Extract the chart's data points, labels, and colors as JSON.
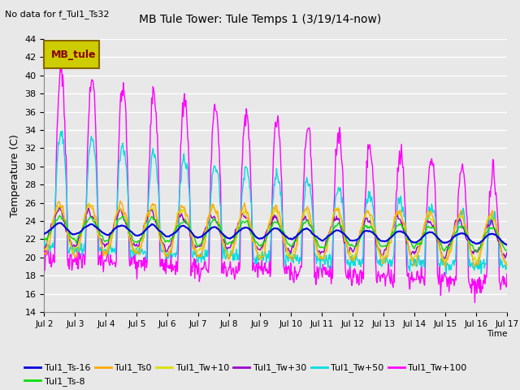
{
  "title": "MB Tule Tower: Tule Temps 1 (3/19/14-now)",
  "top_left_text": "No data for f_Tul1_Ts32",
  "xlabel": "Time",
  "ylabel": "Temperature (C)",
  "ylim": [
    14,
    44
  ],
  "yticks": [
    14,
    16,
    18,
    20,
    22,
    24,
    26,
    28,
    30,
    32,
    34,
    36,
    38,
    40,
    42,
    44
  ],
  "xtick_labels": [
    "Jul 2",
    "Jul 3",
    "Jul 4",
    "Jul 5",
    "Jul 6",
    "Jul 7",
    "Jul 8",
    "Jul 9",
    "Jul 10",
    "Jul 11",
    "Jul 12",
    "Jul 13",
    "Jul 14",
    "Jul 15",
    "Jul 16",
    "Jul 17"
  ],
  "legend_label": "MB_tule",
  "series_colors": {
    "Tul1_Ts-16": "#0000dd",
    "Tul1_Ts-8": "#00dd00",
    "Tul1_Ts0": "#ffaa00",
    "Tul1_Tw+10": "#dddd00",
    "Tul1_Tw+30": "#9900cc",
    "Tul1_Tw+50": "#00dddd",
    "Tul1_Tw+100": "#ff00ff"
  },
  "background_color": "#e8e8e8",
  "grid_color": "#ffffff",
  "n_days": 15,
  "pts_per_day": 48
}
